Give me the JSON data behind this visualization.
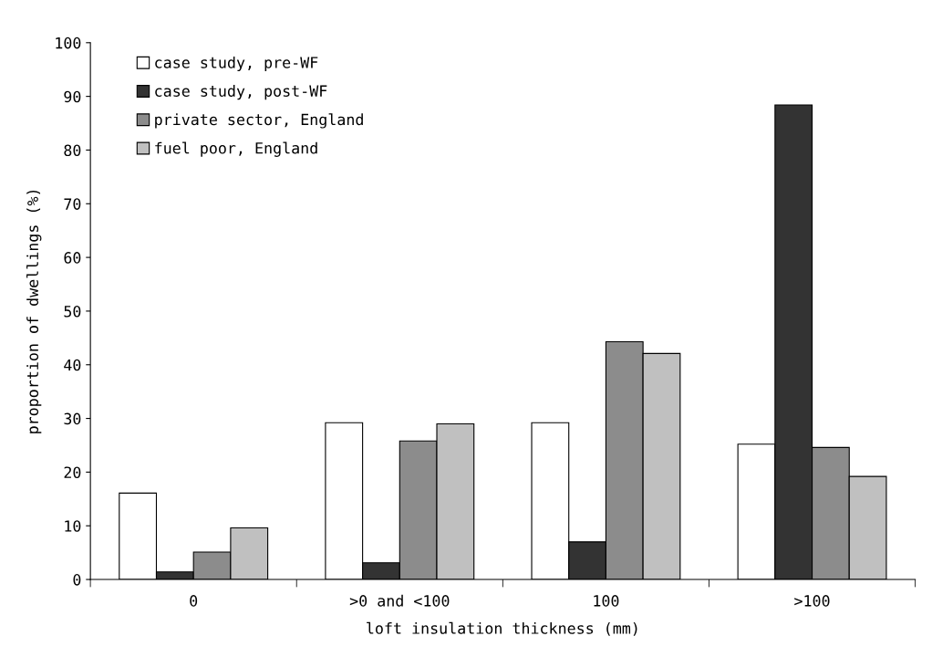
{
  "chart_data": {
    "type": "bar",
    "xlabel": "loft insulation thickness (mm)",
    "ylabel": "proportion of dwellings (%)",
    "categories": [
      "0",
      ">0 and <100",
      "100",
      ">100"
    ],
    "series": [
      {
        "name": "case study, pre-WF",
        "color": "#ffffff",
        "values": [
          16.1,
          29.2,
          29.2,
          25.2
        ]
      },
      {
        "name": "case study, post-WF",
        "color": "#333333",
        "values": [
          1.4,
          3.1,
          7.0,
          88.4
        ]
      },
      {
        "name": "private sector, England",
        "color": "#8c8c8c",
        "values": [
          5.1,
          25.8,
          44.3,
          24.6
        ]
      },
      {
        "name": "fuel poor, England",
        "color": "#c0c0c0",
        "values": [
          9.6,
          29.0,
          42.1,
          19.2
        ]
      }
    ],
    "ylim": [
      0,
      100
    ],
    "yticks": [
      0,
      10,
      20,
      30,
      40,
      50,
      60,
      70,
      80,
      90,
      100
    ],
    "grid": false,
    "legend": "top left"
  }
}
